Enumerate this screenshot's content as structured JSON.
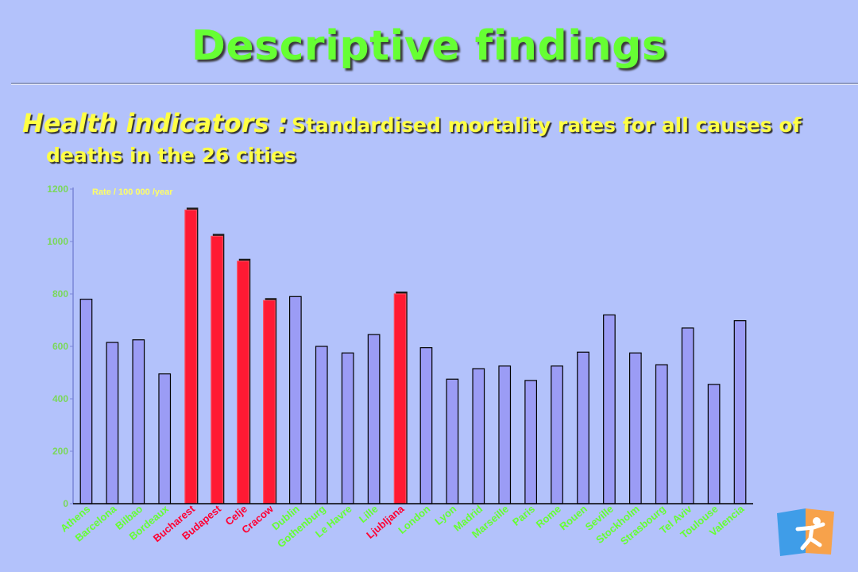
{
  "slide": {
    "title": "Descriptive findings",
    "subtitle_lead": "Health indicators :",
    "subtitle_rest_1": "Standardised mortality rates for all causes of",
    "subtitle_rest_2": "deaths in the 26 cities"
  },
  "colors": {
    "background": "#b3c2fb",
    "title": "#66ff33",
    "subtitle": "#ffff44",
    "bar_default": "#9b9cf5",
    "bar_highlight": "#ff1a33",
    "label_default": "#66ff33",
    "label_highlight": "#ff0033"
  },
  "chart_data": {
    "type": "bar",
    "unit_label": "Rate / 100 000 /year",
    "ylim": [
      0,
      1200
    ],
    "yticks": [
      0,
      200,
      400,
      600,
      800,
      1000,
      1200
    ],
    "grid": false,
    "categories": [
      "Athens",
      "Barcelona",
      "Bilbao",
      "Bordeaux",
      "Bucharest",
      "Budapest",
      "Celje",
      "Cracow",
      "Dublin",
      "Gothenburg",
      "Le Havre",
      "Lille",
      "Ljubljana",
      "London",
      "Lyon",
      "Madrid",
      "Marseille",
      "Paris",
      "Rome",
      "Rouen",
      "Seville",
      "Stockholm",
      "Strasbourg",
      "Tel Aviv",
      "Toulouse",
      "Valencia"
    ],
    "values": [
      780,
      615,
      625,
      495,
      1120,
      1020,
      925,
      775,
      790,
      600,
      575,
      645,
      800,
      595,
      475,
      515,
      525,
      470,
      525,
      578,
      720,
      575,
      530,
      670,
      455,
      698
    ],
    "highlighted": [
      "Bucharest",
      "Budapest",
      "Celje",
      "Cracow",
      "Ljubljana"
    ]
  }
}
